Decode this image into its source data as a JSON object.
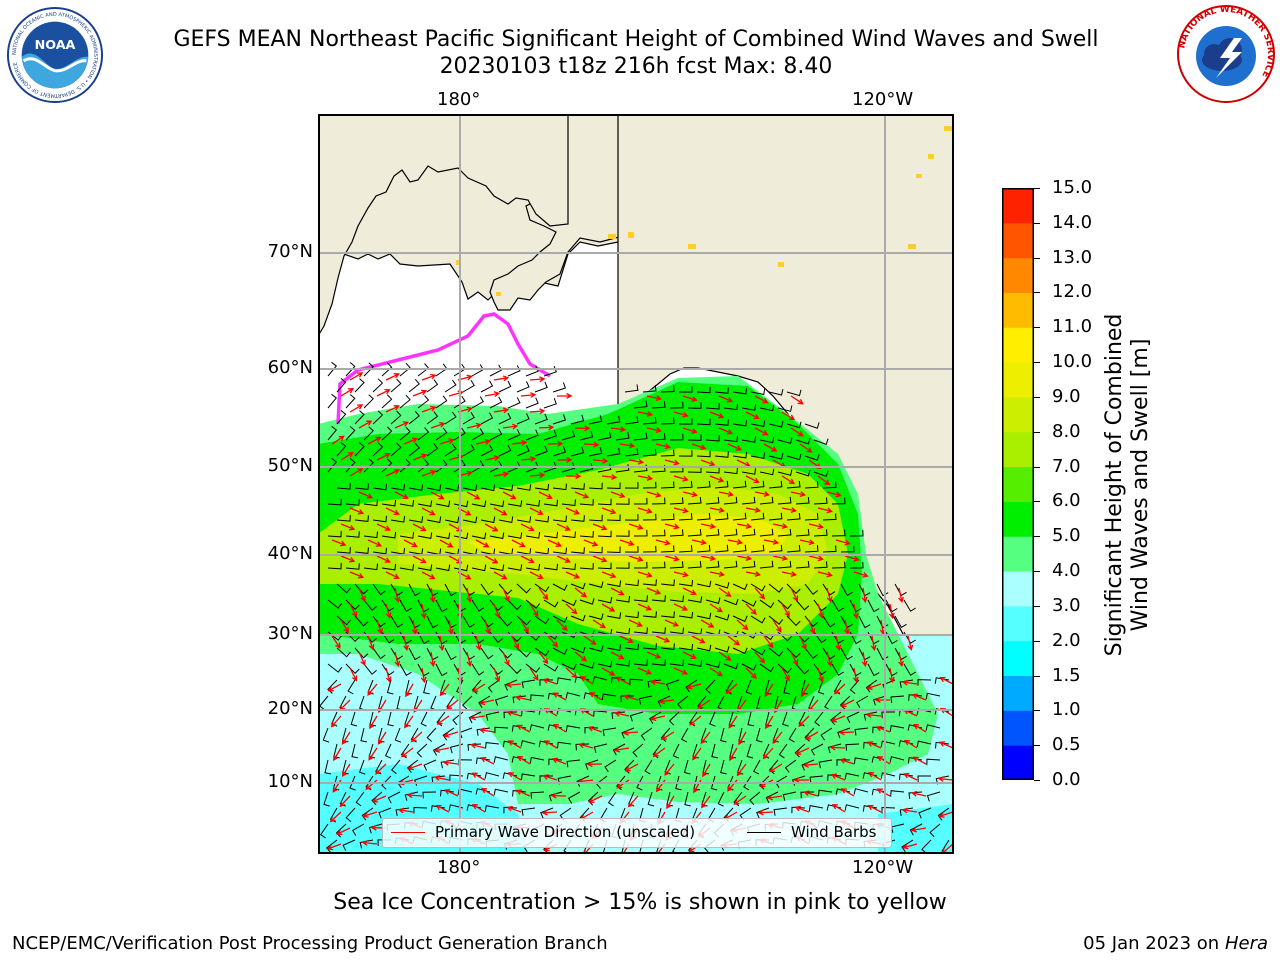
{
  "title": {
    "line1": "GEFS MEAN Northeast Pacific Significant Height of Combined Wind Waves and Swell",
    "line2": "20230103 t18z 216h fcst   Max: 8.40"
  },
  "logos": {
    "left": {
      "name": "noaa-logo",
      "text": "NOAA",
      "ring_text": "NATIONAL OCEANIC AND ATMOSPHERIC ADMINISTRATION • U.S. DEPARTMENT OF COMMERCE"
    },
    "right": {
      "name": "nws-logo",
      "ring_text": "NATIONAL WEATHER SERVICE"
    }
  },
  "map": {
    "top_labels": [
      "180°",
      "120°W"
    ],
    "bottom_labels": [
      "180°",
      "120°W"
    ],
    "lat_labels": [
      "70°N",
      "60°N",
      "50°N",
      "40°N",
      "30°N",
      "20°N",
      "10°N"
    ],
    "colors": {
      "land": "#efedda",
      "sea_ice_low": "#ff33ff",
      "sea_ice_high": "#ffcc33",
      "wave_arrow": "#ff0000",
      "wind_barb": "#000000",
      "grid": "#aaaaaa"
    }
  },
  "colorbar": {
    "label_line1": "Significant Height of Combined",
    "label_line2": "Wind Waves and Swell [m]",
    "ticks": [
      "0.0",
      "0.5",
      "1.0",
      "1.5",
      "2.0",
      "3.0",
      "4.0",
      "5.0",
      "6.0",
      "7.0",
      "8.0",
      "9.0",
      "10.0",
      "11.0",
      "12.0",
      "13.0",
      "14.0",
      "15.0"
    ],
    "colors": [
      "#0000ff",
      "#0055ff",
      "#00aaff",
      "#00ffff",
      "#55ffff",
      "#aaffff",
      "#55ff80",
      "#00ee00",
      "#55ee00",
      "#aaee00",
      "#ccee00",
      "#eeee00",
      "#ffee00",
      "#ffbb00",
      "#ff8800",
      "#ff5500",
      "#ff2200",
      "#ff0000"
    ]
  },
  "legend": {
    "wave_label": "Primary Wave Direction (unscaled)",
    "barb_label": "Wind Barbs"
  },
  "footnote": "Sea Ice Concentration > 15% is shown in pink to yellow",
  "credits": {
    "left": "NCEP/EMC/Verification Post Processing Product Generation Branch",
    "right_date": "05 Jan 2023 on ",
    "right_host": "Hera"
  }
}
